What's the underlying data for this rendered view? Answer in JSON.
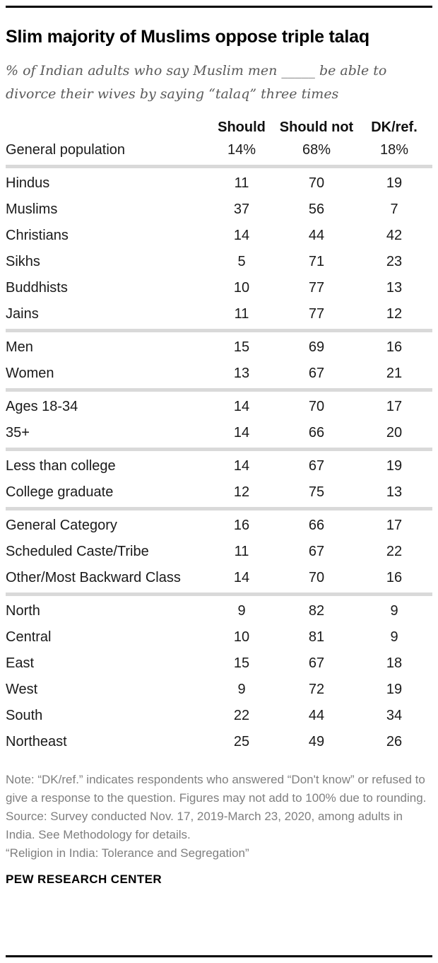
{
  "header": {
    "title": "Slim majority of Muslims oppose triple talaq",
    "subtitle": "% of Indian adults who say Muslim men _____ be able to divorce their wives by saying “talaq” three times"
  },
  "table": {
    "columns": [
      "Should",
      "Should not",
      "DK/ref."
    ],
    "sections": [
      {
        "rows": [
          {
            "label": "General population",
            "values": [
              "14%",
              "68%",
              "18%"
            ]
          }
        ]
      },
      {
        "rows": [
          {
            "label": "Hindus",
            "values": [
              "11",
              "70",
              "19"
            ]
          },
          {
            "label": "Muslims",
            "values": [
              "37",
              "56",
              "7"
            ]
          },
          {
            "label": "Christians",
            "values": [
              "14",
              "44",
              "42"
            ]
          },
          {
            "label": "Sikhs",
            "values": [
              "5",
              "71",
              "23"
            ]
          },
          {
            "label": "Buddhists",
            "values": [
              "10",
              "77",
              "13"
            ]
          },
          {
            "label": "Jains",
            "values": [
              "11",
              "77",
              "12"
            ]
          }
        ]
      },
      {
        "rows": [
          {
            "label": "Men",
            "values": [
              "15",
              "69",
              "16"
            ]
          },
          {
            "label": "Women",
            "values": [
              "13",
              "67",
              "21"
            ]
          }
        ]
      },
      {
        "rows": [
          {
            "label": "Ages 18-34",
            "values": [
              "14",
              "70",
              "17"
            ]
          },
          {
            "label": "35+",
            "values": [
              "14",
              "66",
              "20"
            ]
          }
        ]
      },
      {
        "rows": [
          {
            "label": "Less than college",
            "values": [
              "14",
              "67",
              "19"
            ]
          },
          {
            "label": "College graduate",
            "values": [
              "12",
              "75",
              "13"
            ]
          }
        ]
      },
      {
        "rows": [
          {
            "label": "General Category",
            "values": [
              "16",
              "66",
              "17"
            ]
          },
          {
            "label": "Scheduled Caste/Tribe",
            "values": [
              "11",
              "67",
              "22"
            ]
          },
          {
            "label": "Other/Most Backward Class",
            "values": [
              "14",
              "70",
              "16"
            ]
          }
        ]
      },
      {
        "rows": [
          {
            "label": "North",
            "values": [
              "9",
              "82",
              "9"
            ]
          },
          {
            "label": "Central",
            "values": [
              "10",
              "81",
              "9"
            ]
          },
          {
            "label": "East",
            "values": [
              "15",
              "67",
              "18"
            ]
          },
          {
            "label": "West",
            "values": [
              "9",
              "72",
              "19"
            ]
          },
          {
            "label": "South",
            "values": [
              "22",
              "44",
              "34"
            ]
          },
          {
            "label": "Northeast",
            "values": [
              "25",
              "49",
              "26"
            ]
          }
        ]
      }
    ]
  },
  "footer": {
    "note": "Note: “DK/ref.” indicates respondents who answered “Don't know” or refused to give a response to the question. Figures may not add to 100% due to rounding.",
    "source": "Source: Survey conducted Nov. 17, 2019-March 23, 2020, among adults in India. See Methodology for details.",
    "citation": "“Religion in India: Tolerance and Segregation”",
    "brand": "PEW RESEARCH CENTER"
  },
  "colors": {
    "rule": "#000000",
    "section_divider": "#d9d9d9",
    "subtitle_gray": "#5a5a5a",
    "note_gray": "#7f7f7f"
  },
  "chart_data": {
    "type": "table",
    "title": "Slim majority of Muslims oppose triple talaq",
    "subtitle": "% of Indian adults who say Muslim men _____ be able to divorce their wives by saying “talaq” three times",
    "units": "%",
    "columns": [
      "Should",
      "Should not",
      "DK/ref."
    ],
    "categories": [
      "General population",
      "Hindus",
      "Muslims",
      "Christians",
      "Sikhs",
      "Buddhists",
      "Jains",
      "Men",
      "Women",
      "Ages 18-34",
      "35+",
      "Less than college",
      "College graduate",
      "General Category",
      "Scheduled Caste/Tribe",
      "Other/Most Backward Class",
      "North",
      "Central",
      "East",
      "West",
      "South",
      "Northeast"
    ],
    "series": [
      {
        "name": "Should",
        "values": [
          14,
          11,
          37,
          14,
          5,
          10,
          11,
          15,
          13,
          14,
          14,
          14,
          12,
          16,
          11,
          14,
          9,
          10,
          15,
          9,
          22,
          25
        ]
      },
      {
        "name": "Should not",
        "values": [
          68,
          70,
          56,
          44,
          71,
          77,
          77,
          69,
          67,
          70,
          66,
          67,
          75,
          66,
          67,
          70,
          82,
          81,
          67,
          72,
          44,
          49
        ]
      },
      {
        "name": "DK/ref.",
        "values": [
          18,
          19,
          7,
          42,
          23,
          13,
          12,
          16,
          21,
          17,
          20,
          19,
          13,
          17,
          22,
          16,
          9,
          9,
          18,
          19,
          34,
          26
        ]
      }
    ]
  }
}
